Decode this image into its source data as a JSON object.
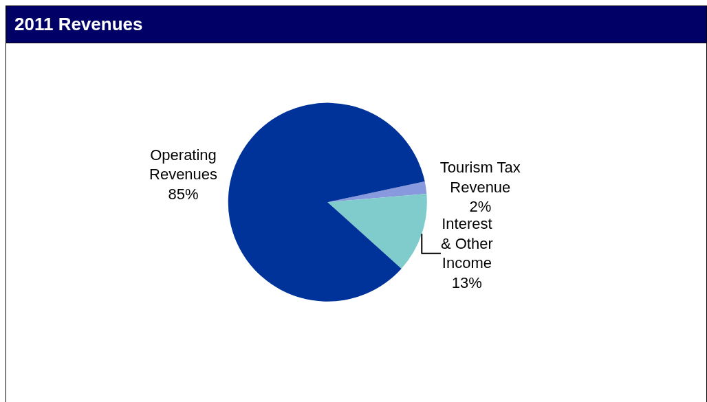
{
  "chart_data": {
    "type": "pie",
    "title": "2011 Revenues",
    "categories": [
      "Tourism Tax Revenue",
      "Interest & Other Income",
      "Operating Revenues"
    ],
    "values": [
      2,
      13,
      85
    ],
    "value_labels": [
      "2%",
      "13%",
      "85%"
    ],
    "colors": [
      "#8899dd",
      "#80cccc",
      "#003399"
    ],
    "legend": false
  }
}
